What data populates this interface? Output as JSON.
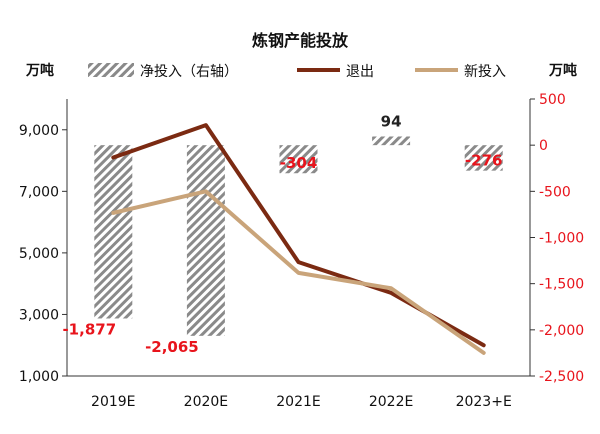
{
  "chart_data": {
    "type": "bar+line",
    "title": "炼钢产能投放",
    "left_unit": "万吨",
    "right_unit": "万吨",
    "categories": [
      "2019E",
      "2020E",
      "2021E",
      "2022E",
      "2023+E"
    ],
    "left_axis": {
      "min": 1000,
      "max": 10000,
      "ticks": [
        1000,
        3000,
        5000,
        7000,
        9000
      ],
      "tick_labels": [
        "1,000",
        "3,000",
        "5,000",
        "7,000",
        "9,000"
      ]
    },
    "right_axis": {
      "min": -2500,
      "max": 500,
      "ticks": [
        -2500,
        -2000,
        -1500,
        -1000,
        -500,
        0,
        500
      ],
      "tick_labels": [
        "-2,500",
        "-2,000",
        "-1,500",
        "-1,000",
        "-500",
        "0",
        "500"
      ]
    },
    "series": [
      {
        "name": "净投入（右轴）",
        "type": "bar",
        "axis": "right",
        "pattern": "hatch",
        "values": [
          -1877,
          -2065,
          -304,
          94,
          -276
        ],
        "value_labels": [
          "-1,877",
          "-2,065",
          "-304",
          "94",
          "-276"
        ]
      },
      {
        "name": "退出",
        "type": "line",
        "axis": "left",
        "color": "#7b2a12",
        "values": [
          8100,
          9150,
          4700,
          3700,
          2000
        ]
      },
      {
        "name": "新投入",
        "type": "line",
        "axis": "left",
        "color": "#c9a47a",
        "values": [
          6300,
          7000,
          4350,
          3850,
          1750
        ]
      }
    ],
    "negative_label_color": "#e8141c",
    "positive_label_color": "#222222",
    "legend_position": "top"
  }
}
